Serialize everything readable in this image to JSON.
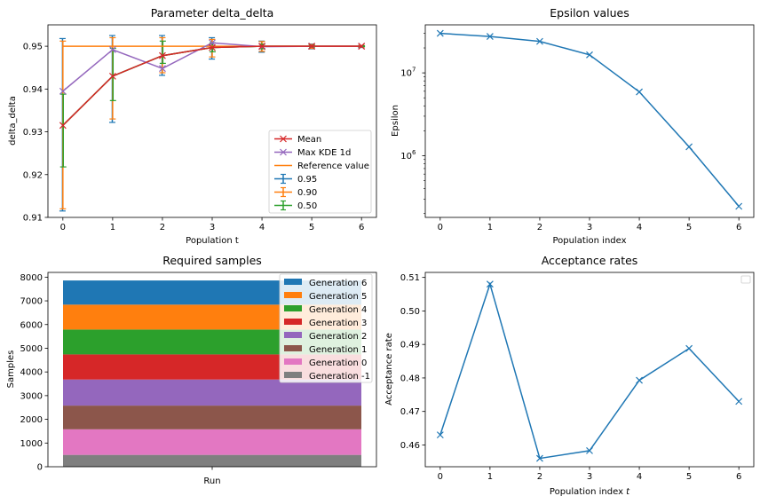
{
  "chart_data": [
    {
      "type": "line",
      "title": "Parameter delta_delta",
      "xlabel": "Population t",
      "ylabel": "delta_delta",
      "x": [
        0,
        1,
        2,
        3,
        4,
        5,
        6
      ],
      "xlim": [
        -0.3,
        6.3
      ],
      "ylim": [
        0.91,
        0.955
      ],
      "xticks": [
        "0",
        "1",
        "2",
        "3",
        "4",
        "5",
        "6"
      ],
      "yticks": [
        "0.91",
        "0.92",
        "0.93",
        "0.94",
        "0.95"
      ],
      "legend_position": "lower-right",
      "reference_value": 0.95,
      "series": [
        {
          "name": "Mean",
          "marker": "x",
          "color": "#d62728",
          "values": [
            0.9315,
            0.943,
            0.9478,
            0.9497,
            0.95,
            0.95,
            0.95
          ]
        },
        {
          "name": "Max KDE 1d",
          "marker": "x",
          "color": "#9467bd",
          "values": [
            0.9395,
            0.9492,
            0.9448,
            0.9508,
            0.9499,
            0.95,
            0.95
          ]
        },
        {
          "name": "Reference value",
          "color": "#ff7f0e",
          "values": [
            0.95,
            0.95,
            0.95,
            0.95,
            0.95,
            0.95,
            0.95
          ]
        }
      ],
      "error_bars": [
        {
          "name": "0.95",
          "color": "#1f77b4",
          "values": [
            0.9315,
            0.943,
            0.9478,
            0.9497,
            0.95,
            0.95,
            0.95
          ],
          "lower": [
            0.9115,
            0.9322,
            0.9432,
            0.947,
            0.9486,
            0.9494,
            0.9497
          ],
          "upper": [
            0.9518,
            0.9525,
            0.9525,
            0.952,
            0.9512,
            0.9505,
            0.9502
          ]
        },
        {
          "name": "0.90",
          "color": "#ff7f0e",
          "values": [
            0.9315,
            0.943,
            0.9478,
            0.9497,
            0.95,
            0.95,
            0.95
          ],
          "lower": [
            0.912,
            0.933,
            0.9438,
            0.9475,
            0.9488,
            0.9495,
            0.9498
          ],
          "upper": [
            0.9512,
            0.952,
            0.952,
            0.9516,
            0.9511,
            0.9504,
            0.9502
          ]
        },
        {
          "name": "0.50",
          "color": "#2ca02c",
          "values": [
            0.9315,
            0.943,
            0.9478,
            0.9497,
            0.95,
            0.95,
            0.95
          ],
          "lower": [
            0.9218,
            0.9373,
            0.946,
            0.9487,
            0.9494,
            0.9498,
            0.9499
          ],
          "upper": [
            0.9388,
            0.9495,
            0.9512,
            0.9508,
            0.9505,
            0.9502,
            0.9501
          ]
        }
      ]
    },
    {
      "type": "line",
      "title": "Epsilon values",
      "xlabel": "Population index",
      "ylabel": "Epsilon",
      "yscale": "log",
      "x": [
        0,
        1,
        2,
        3,
        4,
        5,
        6
      ],
      "xlim": [
        -0.3,
        6.3
      ],
      "ylim": [
        180000,
        38000000
      ],
      "xticks": [
        "0",
        "1",
        "2",
        "3",
        "4",
        "5",
        "6"
      ],
      "yticks": [
        {
          "value": 10000000,
          "base": "10",
          "exp": "7"
        },
        {
          "value": 1000000,
          "base": "10",
          "exp": "6"
        }
      ],
      "series": [
        {
          "marker": "x",
          "color": "#1f77b4",
          "values": [
            30000000,
            27500000,
            24000000,
            16500000,
            5900000,
            1280000,
            245000
          ]
        }
      ]
    },
    {
      "type": "bar",
      "stacked": true,
      "title": "Required samples",
      "ylabel": "Samples",
      "categories": [
        "Run"
      ],
      "ylim": [
        0,
        8200
      ],
      "yticks": [
        "0",
        "1000",
        "2000",
        "3000",
        "4000",
        "5000",
        "6000",
        "7000",
        "8000"
      ],
      "legend_position": "upper-right",
      "series": [
        {
          "name": "Generation -1",
          "color": "#7f7f7f",
          "values": [
            500
          ]
        },
        {
          "name": "Generation 0",
          "color": "#e377c2",
          "values": [
            1080
          ]
        },
        {
          "name": "Generation 1",
          "color": "#8c564b",
          "values": [
            1000
          ]
        },
        {
          "name": "Generation 2",
          "color": "#9467bd",
          "values": [
            1100
          ]
        },
        {
          "name": "Generation 3",
          "color": "#d62728",
          "values": [
            1060
          ]
        },
        {
          "name": "Generation 4",
          "color": "#2ca02c",
          "values": [
            1050
          ]
        },
        {
          "name": "Generation 5",
          "color": "#ff7f0e",
          "values": [
            1050
          ]
        },
        {
          "name": "Generation 6",
          "color": "#1f77b4",
          "values": [
            1020
          ]
        }
      ]
    },
    {
      "type": "line",
      "title": "Acceptance rates",
      "xlabel_text": "Population index ",
      "xlabel_var": "t",
      "ylabel": "Acceptance rate",
      "x": [
        0,
        1,
        2,
        3,
        4,
        5,
        6
      ],
      "xlim": [
        -0.3,
        6.3
      ],
      "ylim": [
        0.4535,
        0.5115
      ],
      "xticks": [
        "0",
        "1",
        "2",
        "3",
        "4",
        "5",
        "6"
      ],
      "yticks": [
        "0.46",
        "0.47",
        "0.48",
        "0.49",
        "0.50",
        "0.51"
      ],
      "legend_position": "upper-right",
      "series": [
        {
          "marker": "x",
          "color": "#1f77b4",
          "values": [
            0.463,
            0.508,
            0.456,
            0.4583,
            0.4793,
            0.4888,
            0.473
          ]
        }
      ]
    }
  ]
}
